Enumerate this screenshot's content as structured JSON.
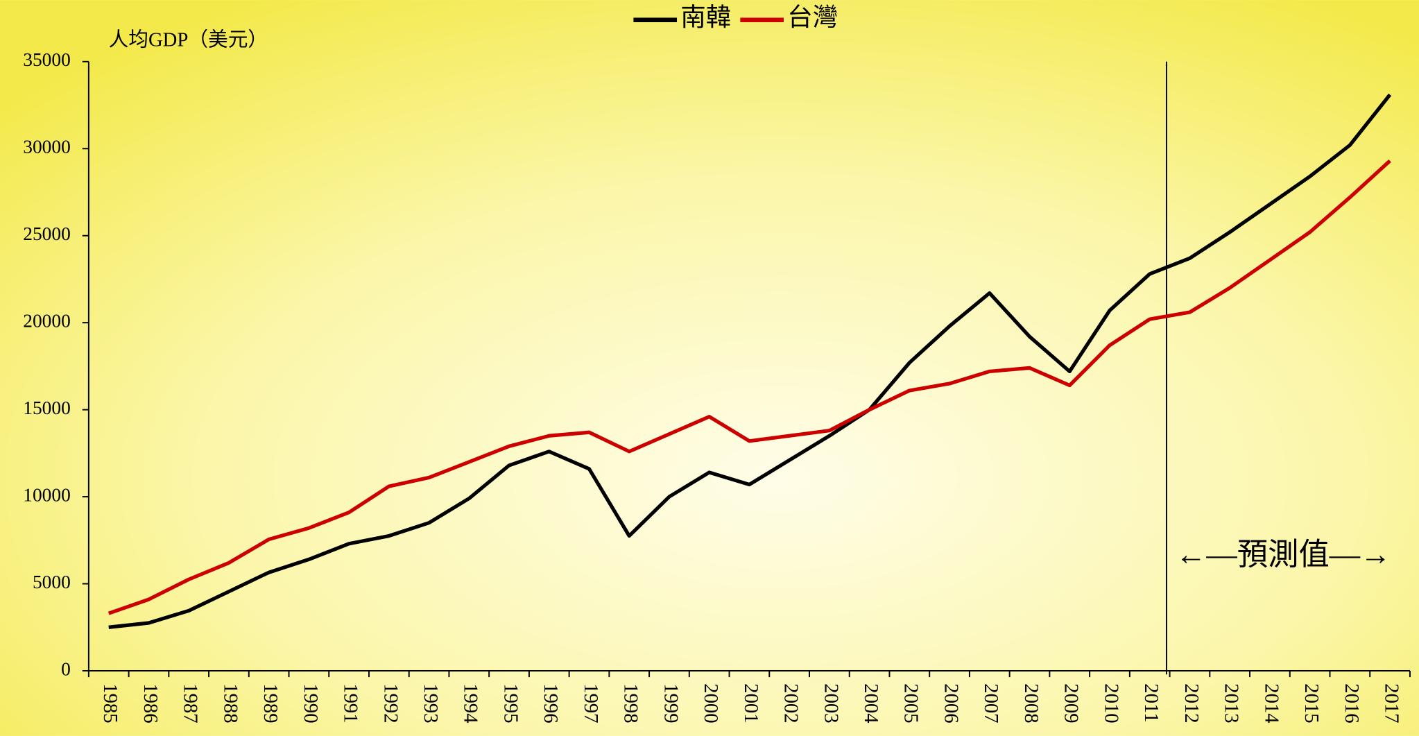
{
  "chart_data": {
    "type": "line",
    "legend_title": null,
    "ylabel": "人均GDP（美元）",
    "categories": [
      "1985",
      "1986",
      "1987",
      "1988",
      "1989",
      "1990",
      "1991",
      "1992",
      "1993",
      "1994",
      "1995",
      "1996",
      "1997",
      "1998",
      "1999",
      "2000",
      "2001",
      "2002",
      "2003",
      "2004",
      "2005",
      "2006",
      "2007",
      "2008",
      "2009",
      "2010",
      "2011",
      "2012",
      "2013",
      "2014",
      "2015",
      "2016",
      "2017"
    ],
    "series": [
      {
        "name": "南韓",
        "color": "#000000",
        "values": [
          2500,
          2750,
          3450,
          4550,
          5650,
          6400,
          7300,
          7750,
          8500,
          9900,
          11800,
          12600,
          11600,
          7750,
          10000,
          11400,
          10700,
          12100,
          13500,
          15000,
          17700,
          19800,
          21700,
          19200,
          17200,
          20700,
          22800,
          23700,
          25200,
          26800,
          28400,
          30200,
          33100
        ]
      },
      {
        "name": "台灣",
        "color": "#cc0000",
        "values": [
          3300,
          4100,
          5250,
          6200,
          7550,
          8200,
          9100,
          10600,
          11100,
          12000,
          12900,
          13500,
          13700,
          12600,
          13600,
          14600,
          13200,
          13500,
          13800,
          15000,
          16100,
          16500,
          17200,
          17400,
          16400,
          18700,
          20200,
          20600,
          22000,
          23600,
          25200,
          27200,
          29300
        ]
      }
    ],
    "ylim": [
      0,
      35000
    ],
    "yticks": [
      0,
      5000,
      10000,
      15000,
      20000,
      25000,
      30000,
      35000
    ],
    "annotation": "←—預測值—→",
    "legend": "top"
  }
}
